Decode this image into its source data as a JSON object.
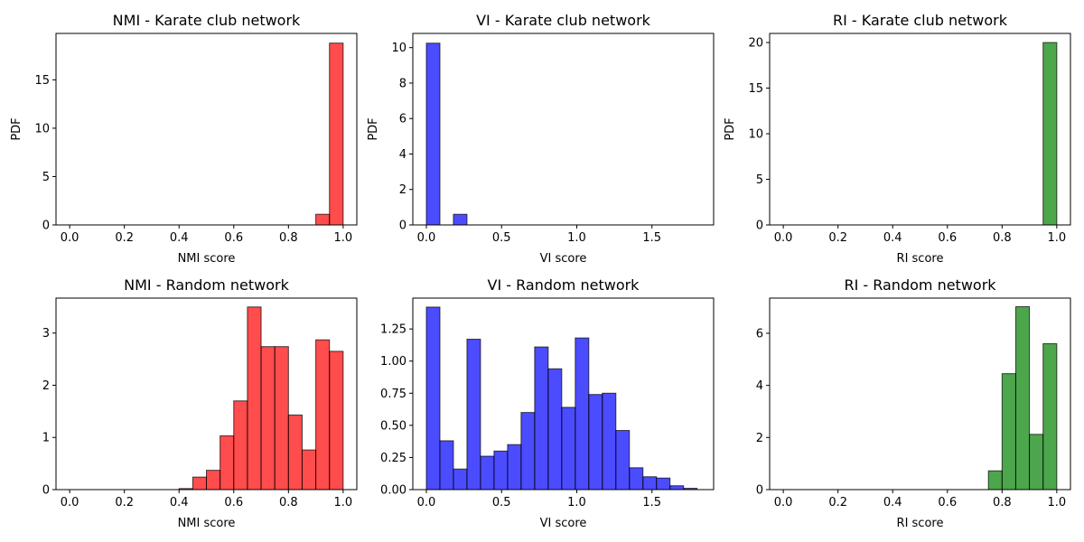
{
  "chart_data": [
    {
      "type": "bar",
      "title": "NMI - Karate club network",
      "xlabel": "NMI score",
      "ylabel": "PDF",
      "color": "#ff0000",
      "xlim": [
        -0.05,
        1.05
      ],
      "ylim": [
        0,
        19.8
      ],
      "xticks": [
        0.0,
        0.2,
        0.4,
        0.6,
        0.8,
        1.0
      ],
      "xtick_labels": [
        "0.0",
        "0.2",
        "0.4",
        "0.6",
        "0.8",
        "1.0"
      ],
      "yticks": [
        0,
        5,
        10,
        15
      ],
      "ytick_labels": [
        "0",
        "5",
        "10",
        "15"
      ],
      "bins": [
        [
          0.9,
          0.95,
          1.1
        ],
        [
          0.95,
          1.0,
          18.8
        ]
      ]
    },
    {
      "type": "bar",
      "title": "VI - Karate club network",
      "xlabel": "VI score",
      "ylabel": "PDF",
      "color": "#0000ff",
      "xlim": [
        -0.09,
        1.91
      ],
      "ylim": [
        0,
        10.8
      ],
      "xticks": [
        0.0,
        0.5,
        1.0,
        1.5
      ],
      "xtick_labels": [
        "0.0",
        "0.5",
        "1.0",
        "1.5"
      ],
      "yticks": [
        0,
        2,
        4,
        6,
        8,
        10
      ],
      "ytick_labels": [
        "0",
        "2",
        "4",
        "6",
        "8",
        "10"
      ],
      "bins": [
        [
          0.0,
          0.09,
          10.25
        ],
        [
          0.18,
          0.27,
          0.6
        ]
      ]
    },
    {
      "type": "bar",
      "title": "RI - Karate club network",
      "xlabel": "RI score",
      "ylabel": "PDF",
      "color": "#008000",
      "xlim": [
        -0.05,
        1.05
      ],
      "ylim": [
        0,
        21
      ],
      "xticks": [
        0.0,
        0.2,
        0.4,
        0.6,
        0.8,
        1.0
      ],
      "xtick_labels": [
        "0.0",
        "0.2",
        "0.4",
        "0.6",
        "0.8",
        "1.0"
      ],
      "yticks": [
        0,
        5,
        10,
        15,
        20
      ],
      "ytick_labels": [
        "0",
        "5",
        "10",
        "15",
        "20"
      ],
      "bins": [
        [
          0.95,
          1.0,
          20.0
        ]
      ]
    },
    {
      "type": "bar",
      "title": "NMI - Random network",
      "xlabel": "NMI score",
      "ylabel": "",
      "color": "#ff0000",
      "xlim": [
        -0.05,
        1.05
      ],
      "ylim": [
        0,
        3.67
      ],
      "xticks": [
        0.0,
        0.2,
        0.4,
        0.6,
        0.8,
        1.0
      ],
      "xtick_labels": [
        "0.0",
        "0.2",
        "0.4",
        "0.6",
        "0.8",
        "1.0"
      ],
      "yticks": [
        0,
        1,
        2,
        3
      ],
      "ytick_labels": [
        "0",
        "1",
        "2",
        "3"
      ],
      "bins": [
        [
          0.4,
          0.45,
          0.02
        ],
        [
          0.45,
          0.5,
          0.24
        ],
        [
          0.5,
          0.55,
          0.37
        ],
        [
          0.55,
          0.6,
          1.03
        ],
        [
          0.6,
          0.65,
          1.7
        ],
        [
          0.65,
          0.7,
          3.5
        ],
        [
          0.7,
          0.75,
          2.74
        ],
        [
          0.75,
          0.8,
          2.74
        ],
        [
          0.8,
          0.85,
          1.43
        ],
        [
          0.85,
          0.9,
          0.76
        ],
        [
          0.9,
          0.95,
          2.87
        ],
        [
          0.95,
          1.0,
          2.65
        ]
      ]
    },
    {
      "type": "bar",
      "title": "VI - Random network",
      "xlabel": "VI score",
      "ylabel": "",
      "color": "#0000ff",
      "xlim": [
        -0.09,
        1.91
      ],
      "ylim": [
        0,
        1.49
      ],
      "xticks": [
        0.0,
        0.5,
        1.0,
        1.5
      ],
      "xtick_labels": [
        "0.0",
        "0.5",
        "1.0",
        "1.5"
      ],
      "yticks": [
        0,
        0.25,
        0.5,
        0.75,
        1.0,
        1.25
      ],
      "ytick_labels": [
        "0.00",
        "0.25",
        "0.50",
        "0.75",
        "1.00",
        "1.25"
      ],
      "bins": [
        [
          0.0,
          0.09,
          1.42
        ],
        [
          0.09,
          0.18,
          0.38
        ],
        [
          0.18,
          0.27,
          0.16
        ],
        [
          0.27,
          0.36,
          1.17
        ],
        [
          0.36,
          0.45,
          0.26
        ],
        [
          0.45,
          0.54,
          0.3
        ],
        [
          0.54,
          0.63,
          0.35
        ],
        [
          0.63,
          0.72,
          0.6
        ],
        [
          0.72,
          0.81,
          1.11
        ],
        [
          0.81,
          0.9,
          0.94
        ],
        [
          0.9,
          0.99,
          0.64
        ],
        [
          0.99,
          1.08,
          1.18
        ],
        [
          1.08,
          1.17,
          0.74
        ],
        [
          1.17,
          1.26,
          0.75
        ],
        [
          1.26,
          1.35,
          0.46
        ],
        [
          1.35,
          1.44,
          0.17
        ],
        [
          1.44,
          1.53,
          0.1
        ],
        [
          1.53,
          1.62,
          0.09
        ],
        [
          1.62,
          1.71,
          0.03
        ],
        [
          1.71,
          1.8,
          0.01
        ]
      ]
    },
    {
      "type": "bar",
      "title": "RI - Random network",
      "xlabel": "RI score",
      "ylabel": "",
      "color": "#008000",
      "xlim": [
        -0.05,
        1.05
      ],
      "ylim": [
        0,
        7.35
      ],
      "xticks": [
        0.0,
        0.2,
        0.4,
        0.6,
        0.8,
        1.0
      ],
      "xtick_labels": [
        "0.0",
        "0.2",
        "0.4",
        "0.6",
        "0.8",
        "1.0"
      ],
      "yticks": [
        0,
        2,
        4,
        6
      ],
      "ytick_labels": [
        "0",
        "2",
        "4",
        "6"
      ],
      "bins": [
        [
          0.75,
          0.8,
          0.72
        ],
        [
          0.8,
          0.85,
          4.45
        ],
        [
          0.85,
          0.9,
          7.02
        ],
        [
          0.9,
          0.95,
          2.12
        ],
        [
          0.95,
          1.0,
          5.6
        ]
      ]
    }
  ]
}
